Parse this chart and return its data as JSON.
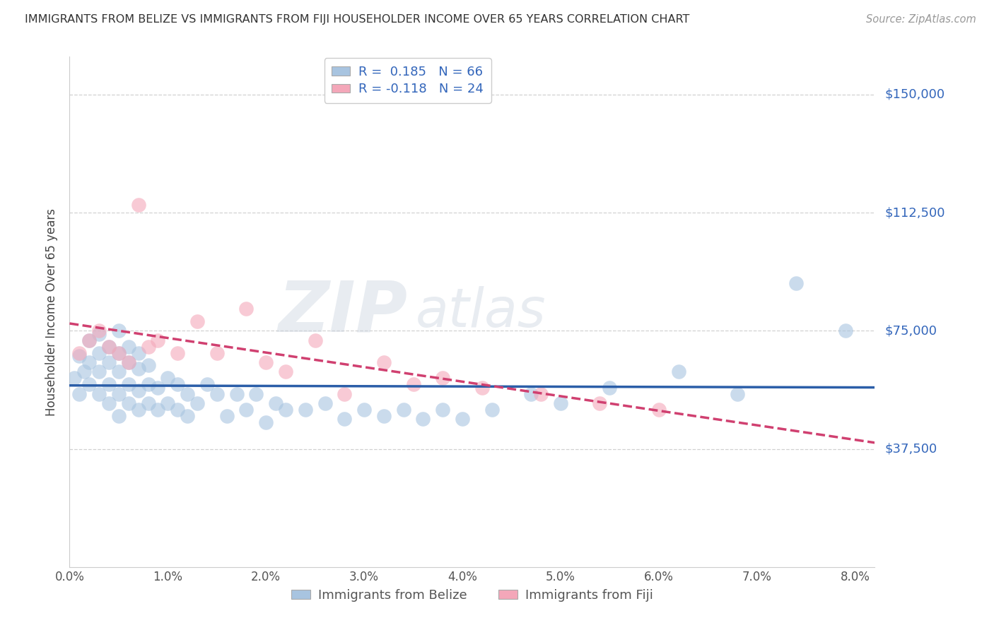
{
  "title": "IMMIGRANTS FROM BELIZE VS IMMIGRANTS FROM FIJI HOUSEHOLDER INCOME OVER 65 YEARS CORRELATION CHART",
  "source": "Source: ZipAtlas.com",
  "ylabel": "Householder Income Over 65 years",
  "ytick_values": [
    37500,
    75000,
    112500,
    150000
  ],
  "ytick_labels": [
    "$37,500",
    "$75,000",
    "$112,500",
    "$150,000"
  ],
  "xlim": [
    0.0,
    0.082
  ],
  "ylim": [
    0,
    162000
  ],
  "belize_color": "#a8c4e0",
  "fiji_color": "#f4a7b9",
  "belize_line_color": "#2b5ea8",
  "fiji_line_color": "#d04070",
  "R_belize": 0.185,
  "N_belize": 66,
  "R_fiji": -0.118,
  "N_fiji": 24,
  "belize_x": [
    0.0005,
    0.001,
    0.001,
    0.0015,
    0.002,
    0.002,
    0.002,
    0.003,
    0.003,
    0.003,
    0.003,
    0.004,
    0.004,
    0.004,
    0.004,
    0.005,
    0.005,
    0.005,
    0.005,
    0.005,
    0.006,
    0.006,
    0.006,
    0.006,
    0.007,
    0.007,
    0.007,
    0.007,
    0.008,
    0.008,
    0.008,
    0.009,
    0.009,
    0.01,
    0.01,
    0.011,
    0.011,
    0.012,
    0.012,
    0.013,
    0.014,
    0.015,
    0.016,
    0.017,
    0.018,
    0.019,
    0.02,
    0.021,
    0.022,
    0.024,
    0.026,
    0.028,
    0.03,
    0.032,
    0.034,
    0.036,
    0.038,
    0.04,
    0.043,
    0.047,
    0.05,
    0.055,
    0.062,
    0.068,
    0.074,
    0.079
  ],
  "belize_y": [
    60000,
    55000,
    67000,
    62000,
    58000,
    65000,
    72000,
    55000,
    62000,
    68000,
    74000,
    52000,
    58000,
    65000,
    70000,
    48000,
    55000,
    62000,
    68000,
    75000,
    52000,
    58000,
    65000,
    70000,
    50000,
    56000,
    63000,
    68000,
    52000,
    58000,
    64000,
    50000,
    57000,
    52000,
    60000,
    50000,
    58000,
    48000,
    55000,
    52000,
    58000,
    55000,
    48000,
    55000,
    50000,
    55000,
    46000,
    52000,
    50000,
    50000,
    52000,
    47000,
    50000,
    48000,
    50000,
    47000,
    50000,
    47000,
    50000,
    55000,
    52000,
    57000,
    62000,
    55000,
    90000,
    75000
  ],
  "fiji_x": [
    0.001,
    0.002,
    0.003,
    0.004,
    0.005,
    0.006,
    0.007,
    0.008,
    0.009,
    0.011,
    0.013,
    0.015,
    0.018,
    0.02,
    0.022,
    0.025,
    0.028,
    0.032,
    0.035,
    0.038,
    0.042,
    0.048,
    0.054,
    0.06
  ],
  "fiji_y": [
    68000,
    72000,
    75000,
    70000,
    68000,
    65000,
    115000,
    70000,
    72000,
    68000,
    78000,
    68000,
    82000,
    65000,
    62000,
    72000,
    55000,
    65000,
    58000,
    60000,
    57000,
    55000,
    52000,
    50000
  ]
}
